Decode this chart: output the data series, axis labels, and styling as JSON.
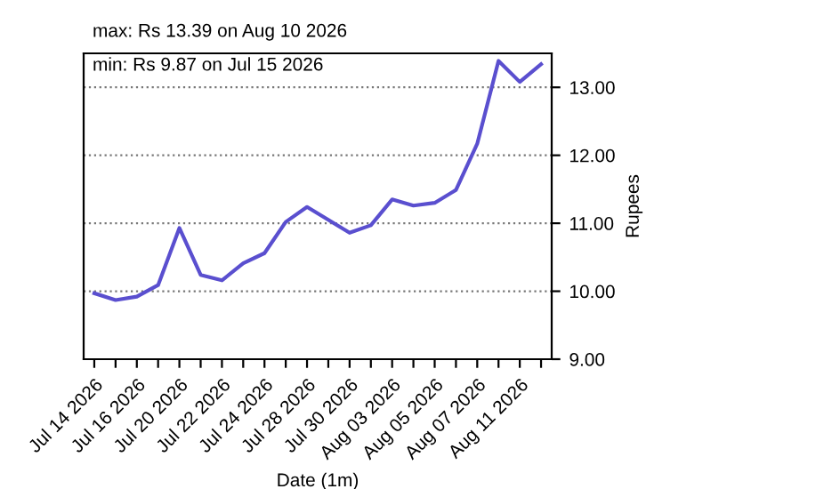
{
  "chart_data": {
    "type": "line",
    "xlabel": "Date (1m)",
    "ylabel": "Rupees",
    "annotations": [
      "max: Rs 13.39 on Aug 10 2026",
      "min: Rs 9.87 on Jul 15 2026"
    ],
    "categories": [
      "Jul 14 2026",
      null,
      "Jul 16 2026",
      null,
      "Jul 20 2026",
      null,
      "Jul 22 2026",
      null,
      "Jul 24 2026",
      null,
      "Jul 28 2026",
      null,
      "Jul 30 2026",
      null,
      "Aug 03 2026",
      null,
      "Aug 05 2026",
      null,
      "Aug 07 2026",
      null,
      "Aug 11 2026",
      null
    ],
    "series": [
      {
        "color": "#5a4fcf",
        "values": [
          9.97,
          9.87,
          9.92,
          10.09,
          10.93,
          10.24,
          10.16,
          10.41,
          10.56,
          11.02,
          11.24,
          11.05,
          10.86,
          10.97,
          11.35,
          11.26,
          11.3,
          11.49,
          12.17,
          13.39,
          13.08,
          13.34
        ]
      }
    ],
    "ylim": [
      9,
      13.5
    ],
    "yticks": [
      {
        "value": 9,
        "label": "9.00"
      },
      {
        "value": 10,
        "label": "10.00"
      },
      {
        "value": 11,
        "label": "11.00"
      },
      {
        "value": 12,
        "label": "12.00"
      },
      {
        "value": 13,
        "label": "13.00"
      }
    ],
    "grid": "y",
    "marker": "none",
    "line_style": "solid"
  }
}
